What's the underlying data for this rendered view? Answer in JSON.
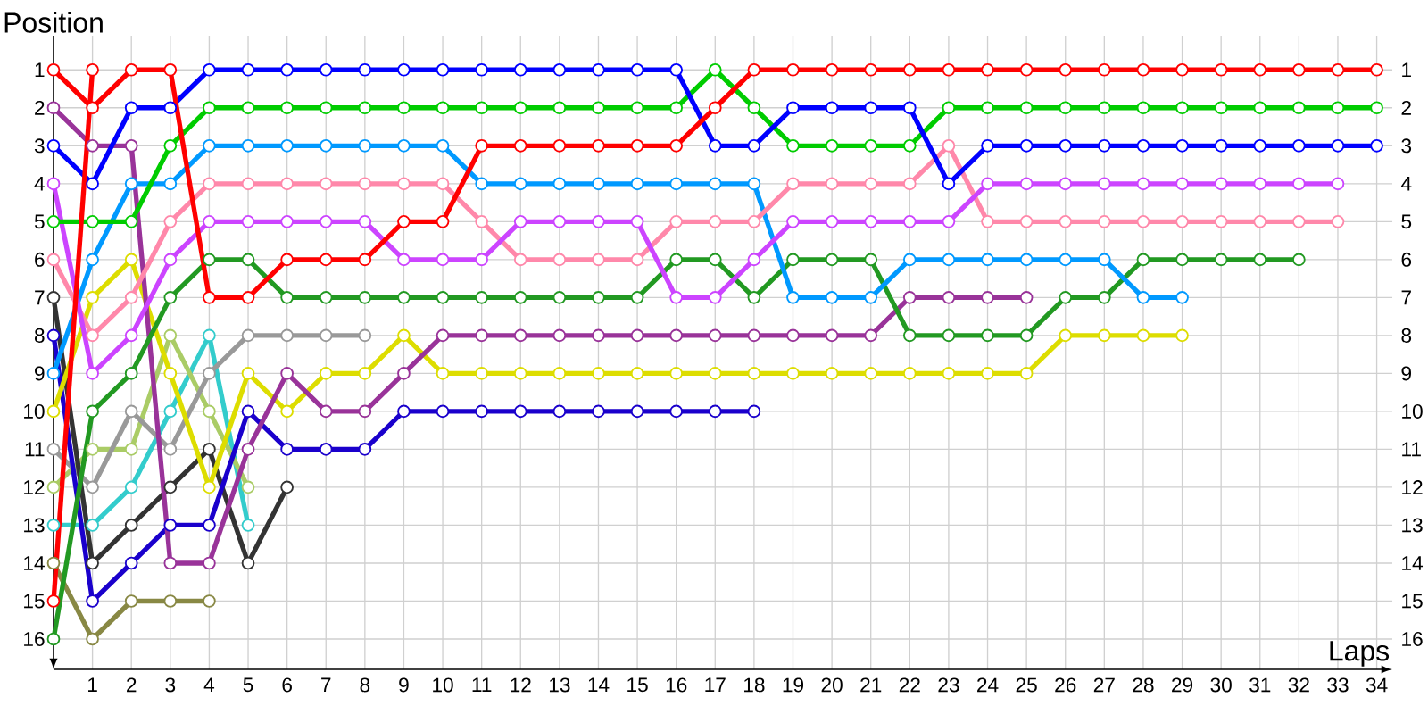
{
  "chart_data": {
    "type": "line",
    "xlabel": "Laps",
    "ylabel": "Position",
    "x": [
      0,
      1,
      2,
      3,
      4,
      5,
      6,
      7,
      8,
      9,
      10,
      11,
      12,
      13,
      14,
      15,
      16,
      17,
      18,
      19,
      20,
      21,
      22,
      23,
      24,
      25,
      26,
      27,
      28,
      29,
      30,
      31,
      32,
      33,
      34
    ],
    "xlim": [
      0,
      34.4
    ],
    "xticks": [
      1,
      2,
      3,
      4,
      5,
      6,
      7,
      8,
      9,
      10,
      11,
      12,
      13,
      14,
      15,
      16,
      17,
      18,
      19,
      20,
      21,
      22,
      23,
      24,
      25,
      26,
      27,
      28,
      29,
      30,
      31,
      32,
      33,
      34
    ],
    "ylim": [
      16.8,
      0.1
    ],
    "yticks": [
      1,
      2,
      3,
      4,
      5,
      6,
      7,
      8,
      9,
      10,
      11,
      12,
      13,
      14,
      15,
      16
    ],
    "y2lim": [
      16.8,
      0.1
    ],
    "y2ticks": [
      1,
      2,
      3,
      4,
      5,
      6,
      7,
      8,
      9,
      10,
      11,
      12,
      13,
      14,
      15,
      16
    ],
    "grid": true,
    "marker": "circle",
    "line_style": "solid",
    "series": [
      {
        "color": "#888844",
        "values": [
          14,
          16,
          15,
          15,
          15,
          null,
          null,
          null,
          null,
          null,
          null,
          null,
          null,
          null,
          null,
          null,
          null,
          null,
          null,
          null,
          null,
          null,
          null,
          null,
          null,
          null,
          null,
          null,
          null,
          null,
          null,
          null,
          null,
          null,
          null
        ]
      },
      {
        "color": "#33cccc",
        "values": [
          13,
          13,
          12,
          10,
          8,
          13,
          null,
          null,
          null,
          null,
          null,
          null,
          null,
          null,
          null,
          null,
          null,
          null,
          null,
          null,
          null,
          null,
          null,
          null,
          null,
          null,
          null,
          null,
          null,
          null,
          null,
          null,
          null,
          null,
          null
        ]
      },
      {
        "color": "#aacc66",
        "values": [
          12,
          11,
          11,
          8,
          10,
          12,
          null,
          null,
          null,
          null,
          null,
          null,
          null,
          null,
          null,
          null,
          null,
          null,
          null,
          null,
          null,
          null,
          null,
          null,
          null,
          null,
          null,
          null,
          null,
          null,
          null,
          null,
          null,
          null,
          null
        ]
      },
      {
        "color": "#999999",
        "values": [
          11,
          12,
          10,
          11,
          9,
          8,
          8,
          8,
          8,
          null,
          null,
          null,
          null,
          null,
          null,
          null,
          null,
          null,
          null,
          null,
          null,
          null,
          null,
          null,
          null,
          null,
          null,
          null,
          null,
          null,
          null,
          null,
          null,
          null,
          null
        ]
      },
      {
        "color": "#333333",
        "values": [
          7,
          14,
          13,
          12,
          11,
          14,
          12,
          null,
          null,
          null,
          null,
          null,
          null,
          null,
          null,
          null,
          null,
          null,
          null,
          null,
          null,
          null,
          null,
          null,
          null,
          null,
          null,
          null,
          null,
          null,
          null,
          null,
          null,
          null,
          null
        ]
      },
      {
        "color": "#1a00cc",
        "values": [
          8,
          15,
          14,
          13,
          13,
          10,
          11,
          11,
          11,
          10,
          10,
          10,
          10,
          10,
          10,
          10,
          10,
          10,
          10,
          null,
          null,
          null,
          null,
          null,
          null,
          null,
          null,
          null,
          null,
          null,
          null,
          null,
          null,
          null,
          null
        ]
      },
      {
        "color": "#dddd00",
        "values": [
          10,
          7,
          6,
          9,
          12,
          9,
          10,
          9,
          9,
          8,
          9,
          9,
          9,
          9,
          9,
          9,
          9,
          9,
          9,
          9,
          9,
          9,
          9,
          9,
          9,
          9,
          8,
          8,
          8,
          8,
          null,
          null,
          null,
          null,
          null
        ]
      },
      {
        "color": "#993399",
        "values": [
          2,
          3,
          3,
          14,
          14,
          11,
          9,
          10,
          10,
          9,
          8,
          8,
          8,
          8,
          8,
          8,
          8,
          8,
          8,
          8,
          8,
          8,
          7,
          7,
          7,
          7,
          null,
          null,
          null,
          null,
          null,
          null,
          null,
          null,
          null
        ]
      },
      {
        "color": "#229922",
        "values": [
          16,
          10,
          9,
          7,
          6,
          6,
          7,
          7,
          7,
          7,
          7,
          7,
          7,
          7,
          7,
          7,
          6,
          6,
          7,
          6,
          6,
          6,
          8,
          8,
          8,
          8,
          7,
          7,
          6,
          6,
          6,
          6,
          6,
          null,
          null
        ]
      },
      {
        "color": "#0099ff",
        "values": [
          9,
          6,
          4,
          4,
          3,
          3,
          3,
          3,
          3,
          3,
          3,
          4,
          4,
          4,
          4,
          4,
          4,
          4,
          4,
          7,
          7,
          7,
          6,
          6,
          6,
          6,
          6,
          6,
          7,
          7,
          null,
          null,
          null,
          null,
          null
        ]
      },
      {
        "color": "#ff88aa",
        "values": [
          6,
          8,
          7,
          5,
          4,
          4,
          4,
          4,
          4,
          4,
          4,
          5,
          6,
          6,
          6,
          6,
          5,
          5,
          5,
          4,
          4,
          4,
          4,
          3,
          5,
          5,
          5,
          5,
          5,
          5,
          5,
          5,
          5,
          5,
          null
        ]
      },
      {
        "color": "#cc44ff",
        "values": [
          4,
          9,
          8,
          6,
          5,
          5,
          5,
          5,
          5,
          6,
          6,
          6,
          5,
          5,
          5,
          5,
          7,
          7,
          6,
          5,
          5,
          5,
          5,
          5,
          4,
          4,
          4,
          4,
          4,
          4,
          4,
          4,
          4,
          4,
          null
        ]
      },
      {
        "color": "#00cc00",
        "values": [
          5,
          5,
          5,
          3,
          2,
          2,
          2,
          2,
          2,
          2,
          2,
          2,
          2,
          2,
          2,
          2,
          2,
          1,
          2,
          3,
          3,
          3,
          3,
          2,
          2,
          2,
          2,
          2,
          2,
          2,
          2,
          2,
          2,
          2,
          2
        ]
      },
      {
        "color": "#0000ff",
        "values": [
          3,
          4,
          2,
          2,
          1,
          1,
          1,
          1,
          1,
          1,
          1,
          1,
          1,
          1,
          1,
          1,
          1,
          3,
          3,
          2,
          2,
          2,
          2,
          4,
          3,
          3,
          3,
          3,
          3,
          3,
          3,
          3,
          3,
          3,
          3
        ]
      },
      {
        "color": "#ff0000",
        "values": [
          15,
          1,
          null,
          null,
          null,
          null,
          null,
          null,
          null,
          null,
          null,
          null,
          null,
          null,
          null,
          null,
          null,
          null,
          null,
          null,
          null,
          null,
          null,
          null,
          null,
          null,
          null,
          null,
          null,
          null,
          null,
          null,
          null,
          null,
          null
        ]
      },
      {
        "color": "#ff0000",
        "values": [
          1,
          2,
          1,
          1,
          7,
          7,
          6,
          6,
          6,
          5,
          5,
          3,
          3,
          3,
          3,
          3,
          3,
          2,
          1,
          1,
          1,
          1,
          1,
          1,
          1,
          1,
          1,
          1,
          1,
          1,
          1,
          1,
          1,
          1,
          1
        ]
      }
    ]
  }
}
